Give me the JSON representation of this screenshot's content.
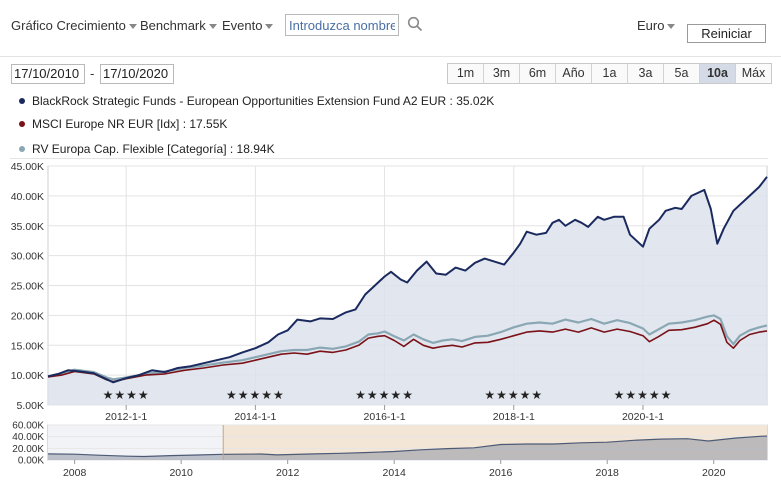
{
  "toolbar": {
    "dropdowns": [
      "Gráfico Crecimiento",
      "Benchmark",
      "Evento"
    ],
    "search_placeholder": "Introduzca nombre",
    "currency": "Euro",
    "reset_label": "Reiniciar"
  },
  "date_range": {
    "from": "17/10/2010",
    "separator": "-",
    "to": "17/10/2020"
  },
  "range_buttons": [
    "1m",
    "3m",
    "6m",
    "Año",
    "1a",
    "3a",
    "5a",
    "10a",
    "Máx"
  ],
  "active_range": "10a",
  "colors": {
    "fund": "#1a2a5e",
    "index": "#7a1218",
    "category": "#8aa7b4",
    "fund_fill": "#dde2ec",
    "nav_fill": "#f3e6d6"
  },
  "chart_data": [
    {
      "type": "line",
      "series": [
        {
          "name": "BlackRock Strategic Funds - European Opportunities Extension Fund A2 EUR",
          "legend": "BlackRock Strategic Funds - European Opportunities Extension Fund A2 EUR : 35.02K",
          "color": "#1a2a5e",
          "points": [
            [
              2010.79,
              9.8
            ],
            [
              2010.95,
              10.2
            ],
            [
              2011.1,
              10.8
            ],
            [
              2011.3,
              10.6
            ],
            [
              2011.5,
              10.3
            ],
            [
              2011.7,
              9.3
            ],
            [
              2011.8,
              8.8
            ],
            [
              2012.0,
              9.5
            ],
            [
              2012.2,
              10.0
            ],
            [
              2012.4,
              10.8
            ],
            [
              2012.6,
              10.5
            ],
            [
              2012.8,
              11.2
            ],
            [
              2013.0,
              11.5
            ],
            [
              2013.2,
              12.0
            ],
            [
              2013.4,
              12.5
            ],
            [
              2013.6,
              13.0
            ],
            [
              2013.8,
              13.8
            ],
            [
              2014.0,
              14.5
            ],
            [
              2014.2,
              15.5
            ],
            [
              2014.35,
              16.8
            ],
            [
              2014.5,
              17.5
            ],
            [
              2014.65,
              19.3
            ],
            [
              2014.85,
              19.0
            ],
            [
              2015.0,
              19.5
            ],
            [
              2015.2,
              19.4
            ],
            [
              2015.4,
              20.5
            ],
            [
              2015.55,
              21.0
            ],
            [
              2015.7,
              23.5
            ],
            [
              2015.85,
              25.0
            ],
            [
              2016.0,
              26.5
            ],
            [
              2016.1,
              27.3
            ],
            [
              2016.25,
              26.0
            ],
            [
              2016.35,
              25.5
            ],
            [
              2016.5,
              27.5
            ],
            [
              2016.65,
              29.0
            ],
            [
              2016.8,
              27.0
            ],
            [
              2016.95,
              26.8
            ],
            [
              2017.1,
              28.0
            ],
            [
              2017.25,
              27.5
            ],
            [
              2017.4,
              28.8
            ],
            [
              2017.55,
              29.5
            ],
            [
              2017.7,
              29.0
            ],
            [
              2017.85,
              28.5
            ],
            [
              2018.0,
              30.5
            ],
            [
              2018.1,
              32.0
            ],
            [
              2018.2,
              34.0
            ],
            [
              2018.35,
              33.5
            ],
            [
              2018.5,
              33.8
            ],
            [
              2018.6,
              35.5
            ],
            [
              2018.7,
              36.0
            ],
            [
              2018.8,
              35.0
            ],
            [
              2018.95,
              36.0
            ],
            [
              2019.05,
              35.5
            ],
            [
              2019.15,
              34.8
            ],
            [
              2019.3,
              36.5
            ],
            [
              2019.4,
              36.0
            ],
            [
              2019.55,
              36.5
            ],
            [
              2019.7,
              36.5
            ],
            [
              2019.8,
              33.5
            ],
            [
              2019.9,
              32.5
            ],
            [
              2020.0,
              31.5
            ],
            [
              2020.1,
              34.5
            ],
            [
              2020.25,
              36.0
            ],
            [
              2020.35,
              37.5
            ],
            [
              2020.5,
              38.0
            ],
            [
              2020.6,
              37.8
            ],
            [
              2020.75,
              40.0
            ],
            [
              2020.85,
              40.5
            ],
            [
              2020.95,
              41.0
            ],
            [
              2021.05,
              37.8
            ],
            [
              2021.15,
              32.0
            ],
            [
              2021.25,
              34.5
            ],
            [
              2021.4,
              37.5
            ],
            [
              2021.6,
              39.5
            ],
            [
              2021.8,
              41.5
            ],
            [
              2021.92,
              43.2
            ]
          ]
        },
        {
          "name": "MSCI Europe NR EUR [Idx]",
          "legend": "MSCI Europe NR EUR [Idx] : 17.55K",
          "color": "#7a1218",
          "points": [
            [
              2010.79,
              9.7
            ],
            [
              2011.0,
              10.0
            ],
            [
              2011.2,
              10.6
            ],
            [
              2011.5,
              10.2
            ],
            [
              2011.7,
              9.2
            ],
            [
              2011.8,
              8.9
            ],
            [
              2012.0,
              9.4
            ],
            [
              2012.3,
              10.0
            ],
            [
              2012.6,
              10.2
            ],
            [
              2012.9,
              10.8
            ],
            [
              2013.2,
              11.2
            ],
            [
              2013.5,
              11.7
            ],
            [
              2013.8,
              12.0
            ],
            [
              2014.0,
              12.5
            ],
            [
              2014.2,
              13.0
            ],
            [
              2014.4,
              13.5
            ],
            [
              2014.6,
              13.7
            ],
            [
              2014.8,
              13.5
            ],
            [
              2015.0,
              14.0
            ],
            [
              2015.2,
              13.8
            ],
            [
              2015.4,
              14.2
            ],
            [
              2015.6,
              15.0
            ],
            [
              2015.75,
              16.2
            ],
            [
              2015.9,
              16.5
            ],
            [
              2016.0,
              16.6
            ],
            [
              2016.15,
              15.8
            ],
            [
              2016.3,
              14.8
            ],
            [
              2016.45,
              16.0
            ],
            [
              2016.6,
              15.0
            ],
            [
              2016.75,
              14.5
            ],
            [
              2016.9,
              14.8
            ],
            [
              2017.05,
              15.0
            ],
            [
              2017.2,
              14.7
            ],
            [
              2017.4,
              15.4
            ],
            [
              2017.6,
              15.5
            ],
            [
              2017.8,
              16.0
            ],
            [
              2018.0,
              16.6
            ],
            [
              2018.2,
              17.2
            ],
            [
              2018.4,
              17.4
            ],
            [
              2018.6,
              17.2
            ],
            [
              2018.8,
              17.7
            ],
            [
              2019.0,
              17.2
            ],
            [
              2019.2,
              17.9
            ],
            [
              2019.4,
              17.2
            ],
            [
              2019.6,
              17.7
            ],
            [
              2019.8,
              17.3
            ],
            [
              2020.0,
              16.6
            ],
            [
              2020.1,
              15.6
            ],
            [
              2020.25,
              16.5
            ],
            [
              2020.4,
              17.5
            ],
            [
              2020.6,
              17.6
            ],
            [
              2020.8,
              18.0
            ],
            [
              2021.0,
              18.6
            ],
            [
              2021.1,
              19.2
            ],
            [
              2021.2,
              18.5
            ],
            [
              2021.3,
              15.5
            ],
            [
              2021.4,
              14.5
            ],
            [
              2021.5,
              15.8
            ],
            [
              2021.65,
              16.8
            ],
            [
              2021.8,
              17.2
            ],
            [
              2021.92,
              17.4
            ]
          ]
        },
        {
          "name": "RV Europa Cap. Flexible [Categoría]",
          "legend": "RV Europa Cap. Flexible [Categoría] : 18.94K",
          "color": "#8aa7b4",
          "points": [
            [
              2010.79,
              9.8
            ],
            [
              2011.0,
              10.2
            ],
            [
              2011.2,
              10.9
            ],
            [
              2011.5,
              10.5
            ],
            [
              2011.7,
              9.6
            ],
            [
              2011.8,
              9.3
            ],
            [
              2012.0,
              9.6
            ],
            [
              2012.3,
              10.2
            ],
            [
              2012.6,
              10.6
            ],
            [
              2012.9,
              11.2
            ],
            [
              2013.2,
              11.6
            ],
            [
              2013.5,
              12.1
            ],
            [
              2013.8,
              12.5
            ],
            [
              2014.0,
              13.0
            ],
            [
              2014.2,
              13.5
            ],
            [
              2014.4,
              14.0
            ],
            [
              2014.6,
              14.2
            ],
            [
              2014.8,
              14.2
            ],
            [
              2015.0,
              14.6
            ],
            [
              2015.2,
              14.4
            ],
            [
              2015.4,
              14.8
            ],
            [
              2015.6,
              15.6
            ],
            [
              2015.75,
              16.8
            ],
            [
              2015.9,
              17.0
            ],
            [
              2016.0,
              17.3
            ],
            [
              2016.15,
              16.5
            ],
            [
              2016.3,
              15.8
            ],
            [
              2016.45,
              16.8
            ],
            [
              2016.6,
              16.0
            ],
            [
              2016.75,
              15.4
            ],
            [
              2016.9,
              15.8
            ],
            [
              2017.05,
              16.0
            ],
            [
              2017.2,
              15.7
            ],
            [
              2017.4,
              16.4
            ],
            [
              2017.6,
              16.6
            ],
            [
              2017.8,
              17.2
            ],
            [
              2018.0,
              18.0
            ],
            [
              2018.2,
              18.6
            ],
            [
              2018.4,
              18.8
            ],
            [
              2018.6,
              18.6
            ],
            [
              2018.8,
              19.3
            ],
            [
              2019.0,
              18.8
            ],
            [
              2019.2,
              19.4
            ],
            [
              2019.4,
              18.6
            ],
            [
              2019.6,
              19.2
            ],
            [
              2019.8,
              18.7
            ],
            [
              2020.0,
              17.8
            ],
            [
              2020.1,
              16.8
            ],
            [
              2020.25,
              17.7
            ],
            [
              2020.4,
              18.6
            ],
            [
              2020.6,
              18.8
            ],
            [
              2020.8,
              19.2
            ],
            [
              2021.0,
              19.8
            ],
            [
              2021.1,
              20.0
            ],
            [
              2021.2,
              19.4
            ],
            [
              2021.3,
              16.5
            ],
            [
              2021.4,
              15.2
            ],
            [
              2021.5,
              16.6
            ],
            [
              2021.65,
              17.5
            ],
            [
              2021.8,
              18.0
            ],
            [
              2021.92,
              18.3
            ]
          ]
        }
      ],
      "ylim": [
        5,
        45
      ],
      "y_ticks": [
        "5.00K",
        "10.00K",
        "15.00K",
        "20.00K",
        "25.00K",
        "30.00K",
        "35.00K",
        "40.00K",
        "45.00K"
      ],
      "x_ticks": [
        {
          "label": "2012-1-1",
          "x": 2012.0
        },
        {
          "label": "2014-1-1",
          "x": 2014.0
        },
        {
          "label": "2016-1-1",
          "x": 2016.0
        },
        {
          "label": "2018-1-1",
          "x": 2018.0
        },
        {
          "label": "2020-1-1",
          "x": 2020.0
        }
      ],
      "xlim": [
        2010.79,
        2021.92
      ],
      "grid": true,
      "ratings": [
        {
          "x": 2012.0,
          "stars": "★★★★"
        },
        {
          "x": 2014.0,
          "stars": "★★★★★"
        },
        {
          "x": 2016.0,
          "stars": "★★★★★"
        },
        {
          "x": 2018.0,
          "stars": "★★★★★"
        },
        {
          "x": 2020.0,
          "stars": "★★★★★"
        }
      ]
    },
    {
      "type": "area",
      "role": "navigator",
      "ylim": [
        0,
        60
      ],
      "y_ticks": [
        "0.00K",
        "20.00K",
        "40.00K",
        "60.00K"
      ],
      "x_ticks": [
        "2008",
        "2010",
        "2012",
        "2014",
        "2016",
        "2018",
        "2020"
      ],
      "x_tick_values": [
        2008,
        2010,
        2012,
        2014,
        2016,
        2018,
        2020
      ],
      "xlim": [
        2007.5,
        2021.0
      ],
      "selection": [
        2010.79,
        2021.0
      ],
      "series": {
        "name": "BlackRock Strategic Funds - European Opportunities Extension Fund A2 EUR",
        "points": [
          [
            2007.5,
            10.5
          ],
          [
            2008.0,
            10.0
          ],
          [
            2008.5,
            8.0
          ],
          [
            2009.0,
            6.5
          ],
          [
            2009.3,
            6.0
          ],
          [
            2009.8,
            7.5
          ],
          [
            2010.3,
            8.5
          ],
          [
            2010.79,
            9.8
          ],
          [
            2011.5,
            10.3
          ],
          [
            2011.8,
            8.8
          ],
          [
            2012.5,
            10.5
          ],
          [
            2013.0,
            11.5
          ],
          [
            2013.5,
            12.8
          ],
          [
            2014.0,
            14.5
          ],
          [
            2014.5,
            17.5
          ],
          [
            2015.0,
            19.5
          ],
          [
            2015.5,
            21.0
          ],
          [
            2016.0,
            26.5
          ],
          [
            2016.5,
            27.5
          ],
          [
            2017.0,
            27.5
          ],
          [
            2017.5,
            29.5
          ],
          [
            2018.0,
            30.5
          ],
          [
            2018.5,
            33.8
          ],
          [
            2019.0,
            35.8
          ],
          [
            2019.5,
            36.5
          ],
          [
            2019.9,
            32.5
          ],
          [
            2020.4,
            37.5
          ],
          [
            2020.9,
            40.8
          ],
          [
            2021.0,
            41.0
          ]
        ]
      }
    }
  ]
}
